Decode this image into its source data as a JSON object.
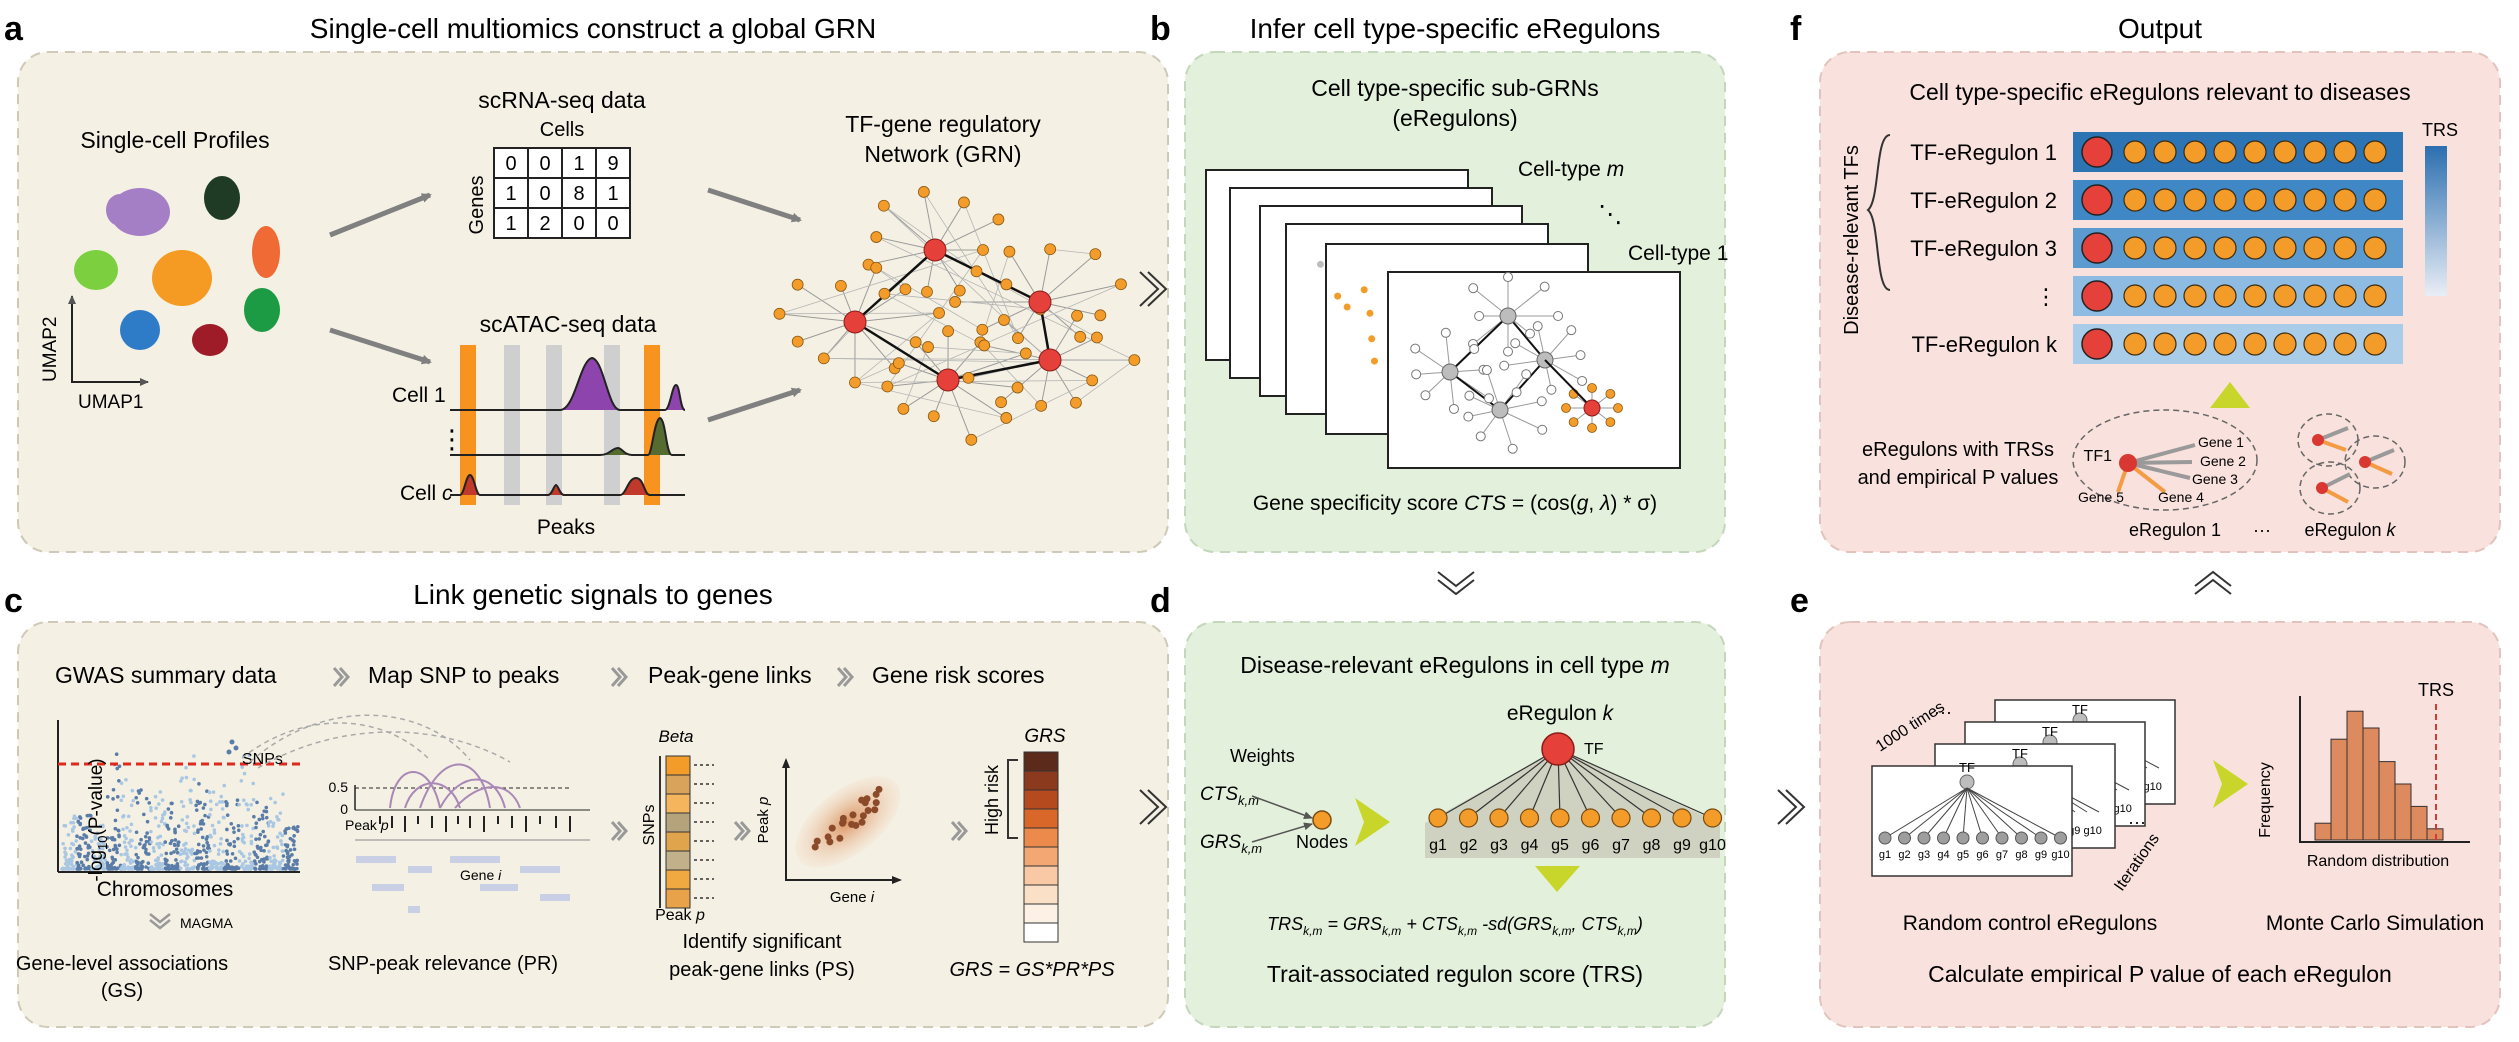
{
  "panel_a": {
    "letter": "a",
    "title": "Single-cell multiomics construct a global GRN",
    "profiles_label": "Single-cell Profiles",
    "umap1": "UMAP1",
    "umap2": "UMAP2",
    "scrna_label": "scRNA-seq data",
    "cells_label": "Cells",
    "genes_label": "Genes",
    "matrix": [
      [
        "0",
        "0",
        "1",
        "9"
      ],
      [
        "1",
        "0",
        "8",
        "1"
      ],
      [
        "1",
        "2",
        "0",
        "0"
      ]
    ],
    "scatac_label": "scATAC-seq data",
    "cell1_label": "Cell 1",
    "vdots": "⋮",
    "cellc_prefix": "Cell ",
    "cellc_var": "c",
    "peaks_label": "Peaks",
    "grn_line1": "TF-gene regulatory",
    "grn_line2": "Network (GRN)"
  },
  "panel_b": {
    "letter": "b",
    "title": "Infer cell type-specific eRegulons",
    "sub_line1": "Cell type-specific sub-GRNs",
    "sub_line2": "(eRegulons)",
    "celltype_m_prefix": "Cell-type ",
    "celltype_m_var": "m",
    "dots": "⋱",
    "celltype_1": "Cell-type 1",
    "score_prefix": "Gene specificity score ",
    "score_var": "CTS",
    "score_formula": " = (cos(",
    "score_g": "g",
    "score_comma": ", ",
    "score_lambda": "λ",
    "score_end": ") * σ)"
  },
  "panel_c": {
    "letter": "c",
    "title": "Link genetic signals to genes",
    "step1": "GWAS summary data",
    "step2": "Map SNP to peaks",
    "step3": "Peak-gene links",
    "step4": "Gene risk scores",
    "ylabel": "-log10(P-value)",
    "snps_label": "SNPs",
    "chromosomes_label": "Chromosomes",
    "magma_label": "MAGMA",
    "gene_level_line1": "Gene-level associations",
    "gene_level_line2": "(GS)",
    "axis_05": "0.5",
    "axis_0": "0",
    "peak_prefix": "Peak ",
    "peak_var": "p",
    "gene_prefix": "Gene ",
    "gene_var": "i",
    "snp_peak_label": "SNP-peak relevance (PR)",
    "beta_label": "Beta",
    "snps_vert": "SNPs",
    "peak_p_label": "Peak p",
    "scatter_ylabel": "Peak p",
    "scatter_xlabel": "Gene i",
    "identify_line1": "Identify significant",
    "identify_line2": "peak-gene links (PS)",
    "grs_label": "GRS",
    "high_risk": "High risk",
    "grs_formula": "GRS = GS*PR*PS"
  },
  "panel_d": {
    "letter": "d",
    "title_prefix": "Disease-relevant eRegulons in cell type ",
    "title_var": "m",
    "eregulon_prefix": "eRegulon ",
    "eregulon_var": "k",
    "tf_label": "TF",
    "weights_label": "Weights",
    "cts_label": "CTS",
    "grs_label": "GRS",
    "km_sub": "k,m",
    "nodes_label": "Nodes",
    "genes": [
      "g1",
      "g2",
      "g3",
      "g4",
      "g5",
      "g6",
      "g7",
      "g8",
      "g9",
      "g10"
    ],
    "formula": "TRSk,m = GRSk,m + CTSk,m -sd(GRSk,m, CTSk,m)",
    "trs_label": "Trait-associated regulon score (TRS)"
  },
  "panel_e": {
    "letter": "e",
    "times_label": "1000 times",
    "tf_label": "TF",
    "genes": [
      "g1",
      "g2",
      "g3",
      "g4",
      "g5",
      "g6",
      "g7",
      "g8",
      "g9",
      "g10"
    ],
    "back_genes": "g9 g10",
    "iterations_label": "Iterations",
    "random_control": "Random control eRegulons",
    "trs_label": "TRS",
    "frequency_label": "Frequency",
    "random_distribution": "Random distribution",
    "monte_carlo": "Monte Carlo Simulation",
    "bottom_label": "Calculate empirical P value of each eRegulon",
    "hist_values": [
      3,
      18,
      23,
      20,
      14,
      10,
      6,
      2
    ]
  },
  "panel_f": {
    "letter": "f",
    "title": "Output",
    "subtitle": "Cell type-specific eRegulons relevant to diseases",
    "disease_tfs": "Disease-relevant TFs",
    "rows": [
      "TF-eRegulon 1",
      "TF-eRegulon 2",
      "TF-eRegulon 3",
      "⋮",
      "TF-eRegulon k"
    ],
    "trs_label": "TRS",
    "with_trs_line1": "eRegulons with TRSs",
    "with_trs_line2": "and empirical P values",
    "tf1_label": "TF1",
    "gene_labels": [
      "Gene 1",
      "Gene 2",
      "Gene 3",
      "Gene 4",
      "Gene 5"
    ],
    "eregulon1": "eRegulon 1",
    "ellipsis": "···",
    "eregulonk": "eRegulon k"
  }
}
